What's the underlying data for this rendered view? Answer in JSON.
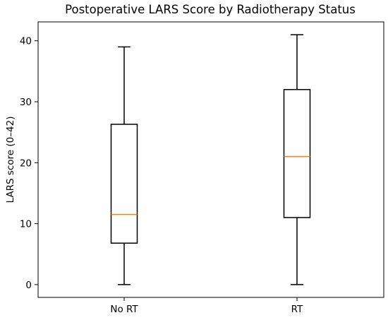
{
  "chart_data": {
    "type": "box",
    "title": "Postoperative LARS Score by Radiotherapy Status",
    "xlabel": "",
    "ylabel": "LARS score (0–42)",
    "ylim": [
      -2.1,
      43.1
    ],
    "yticks": [
      0,
      10,
      20,
      30,
      40
    ],
    "categories": [
      "No RT",
      "RT"
    ],
    "boxes": [
      {
        "category": "No RT",
        "whisker_low": 0,
        "q1": 6.8,
        "median": 11.5,
        "q3": 26.3,
        "whisker_high": 39
      },
      {
        "category": "RT",
        "whisker_low": 0,
        "q1": 11,
        "median": 21,
        "q3": 32,
        "whisker_high": 41
      }
    ],
    "grid": false,
    "colors": {
      "box": "#000000",
      "median": "#ff7f0e",
      "background": "#ffffff"
    }
  }
}
